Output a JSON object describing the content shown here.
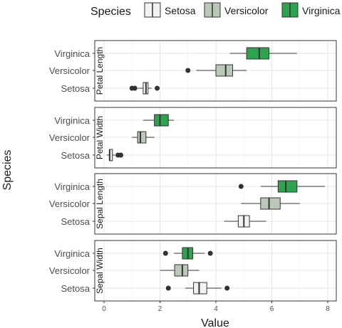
{
  "chart_data": {
    "type": "boxplot",
    "orientation": "horizontal",
    "xlabel": "Value",
    "ylabel": "Species",
    "xlim": [
      0,
      8
    ],
    "x_ticks": [
      0,
      2,
      4,
      6,
      8
    ],
    "grid": true,
    "legend": {
      "title": "Species",
      "position": "top",
      "entries": [
        "Setosa",
        "Versicolor",
        "Virginica"
      ]
    },
    "colors": {
      "Setosa": "#f2f2f2",
      "Versicolor": "#b9c8b9",
      "Virginica": "#2ea34f"
    },
    "categories": [
      "Virginica",
      "Versicolor",
      "Setosa"
    ],
    "facets": [
      {
        "label": "Petal Length",
        "boxes": [
          {
            "species": "Virginica",
            "min": 4.5,
            "q1": 5.1,
            "median": 5.55,
            "q3": 5.9,
            "max": 6.9,
            "outliers": []
          },
          {
            "species": "Versicolor",
            "min": 3.3,
            "q1": 4.0,
            "median": 4.35,
            "q3": 4.6,
            "max": 5.1,
            "outliers": [
              3.0
            ]
          },
          {
            "species": "Setosa",
            "min": 1.2,
            "q1": 1.4,
            "median": 1.5,
            "q3": 1.575,
            "max": 1.7,
            "outliers": [
              1.0,
              1.1,
              1.9
            ]
          }
        ]
      },
      {
        "label": "Petal Width",
        "boxes": [
          {
            "species": "Virginica",
            "min": 1.4,
            "q1": 1.8,
            "median": 2.0,
            "q3": 2.3,
            "max": 2.5,
            "outliers": []
          },
          {
            "species": "Versicolor",
            "min": 1.0,
            "q1": 1.2,
            "median": 1.3,
            "q3": 1.5,
            "max": 1.8,
            "outliers": []
          },
          {
            "species": "Setosa",
            "min": 0.1,
            "q1": 0.2,
            "median": 0.2,
            "q3": 0.3,
            "max": 0.4,
            "outliers": [
              0.5,
              0.6
            ]
          }
        ]
      },
      {
        "label": "Sepal Length",
        "boxes": [
          {
            "species": "Virginica",
            "min": 5.6,
            "q1": 6.225,
            "median": 6.5,
            "q3": 6.9,
            "max": 7.9,
            "outliers": [
              4.9
            ]
          },
          {
            "species": "Versicolor",
            "min": 4.9,
            "q1": 5.6,
            "median": 5.9,
            "q3": 6.3,
            "max": 7.0,
            "outliers": []
          },
          {
            "species": "Setosa",
            "min": 4.3,
            "q1": 4.8,
            "median": 5.0,
            "q3": 5.2,
            "max": 5.8,
            "outliers": []
          }
        ]
      },
      {
        "label": "Sepal Width",
        "boxes": [
          {
            "species": "Virginica",
            "min": 2.5,
            "q1": 2.8,
            "median": 3.0,
            "q3": 3.175,
            "max": 3.6,
            "outliers": [
              2.2,
              3.8
            ]
          },
          {
            "species": "Versicolor",
            "min": 2.0,
            "q1": 2.525,
            "median": 2.8,
            "q3": 3.0,
            "max": 3.4,
            "outliers": []
          },
          {
            "species": "Setosa",
            "min": 2.9,
            "q1": 3.2,
            "median": 3.4,
            "q3": 3.675,
            "max": 4.2,
            "outliers": [
              2.3,
              4.4
            ]
          }
        ]
      }
    ]
  }
}
